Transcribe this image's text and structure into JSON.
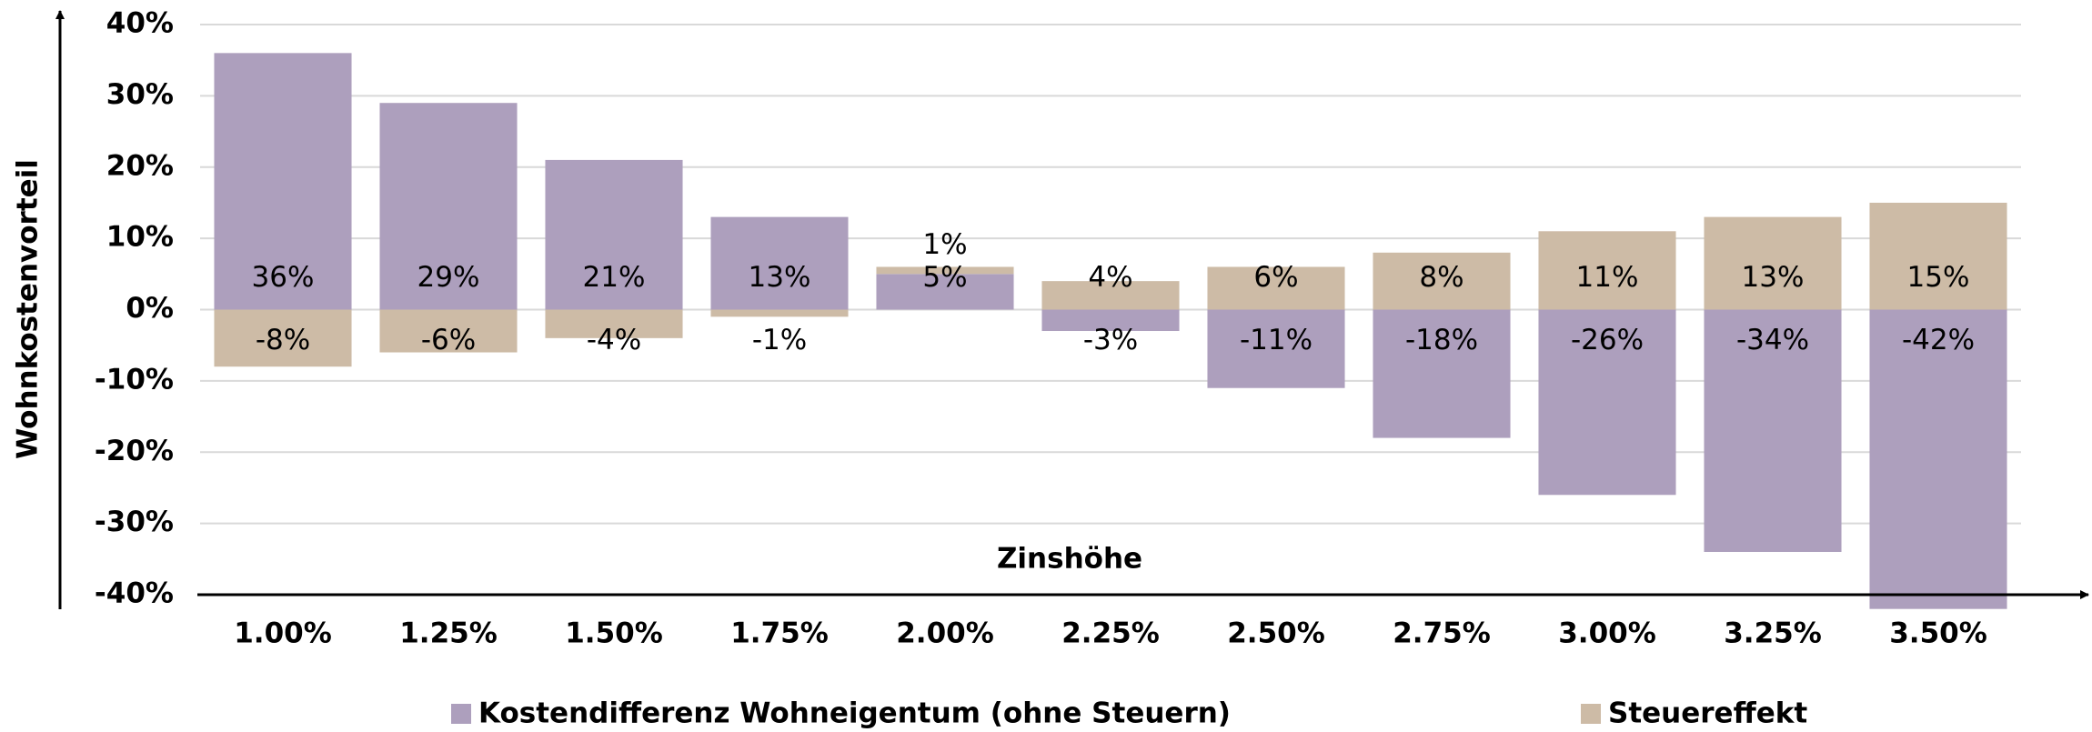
{
  "chart_data": {
    "type": "bar",
    "stacked": true,
    "x_label": "Zinshöhe",
    "y_label": "Wohnkostenvorteil",
    "categories": [
      "1.00%",
      "1.25%",
      "1.50%",
      "1.75%",
      "2.00%",
      "2.25%",
      "2.50%",
      "2.75%",
      "3.00%",
      "3.25%",
      "3.50%"
    ],
    "series": [
      {
        "name": "Kostendifferenz Wohneigentum (ohne Steuern)",
        "color": "#ad9fbd",
        "values": [
          36,
          29,
          21,
          13,
          5,
          -3,
          -11,
          -18,
          -26,
          -34,
          -42
        ],
        "value_labels": [
          "36%",
          "29%",
          "21%",
          "13%",
          "5%",
          "-3%",
          "-11%",
          "-18%",
          "-26%",
          "-34%",
          "-42%"
        ]
      },
      {
        "name": "Steuereffekt",
        "color": "#cdbba6",
        "values": [
          -8,
          -6,
          -4,
          -1,
          1,
          4,
          6,
          8,
          11,
          13,
          15
        ],
        "value_labels": [
          "-8%",
          "-6%",
          "-4%",
          "-1%",
          "1%",
          "4%",
          "6%",
          "8%",
          "11%",
          "13%",
          "15%"
        ]
      }
    ],
    "ylim": [
      -40,
      40
    ],
    "yticks": [
      {
        "value": -40,
        "label": "-40%"
      },
      {
        "value": -30,
        "label": "-30%"
      },
      {
        "value": -20,
        "label": "-20%"
      },
      {
        "value": -10,
        "label": "-10%"
      },
      {
        "value": 0,
        "label": "0%"
      },
      {
        "value": 10,
        "label": "10%"
      },
      {
        "value": 20,
        "label": "20%"
      },
      {
        "value": 30,
        "label": "30%"
      },
      {
        "value": 40,
        "label": "40%"
      }
    ],
    "grid": true,
    "legend": "bottom"
  }
}
